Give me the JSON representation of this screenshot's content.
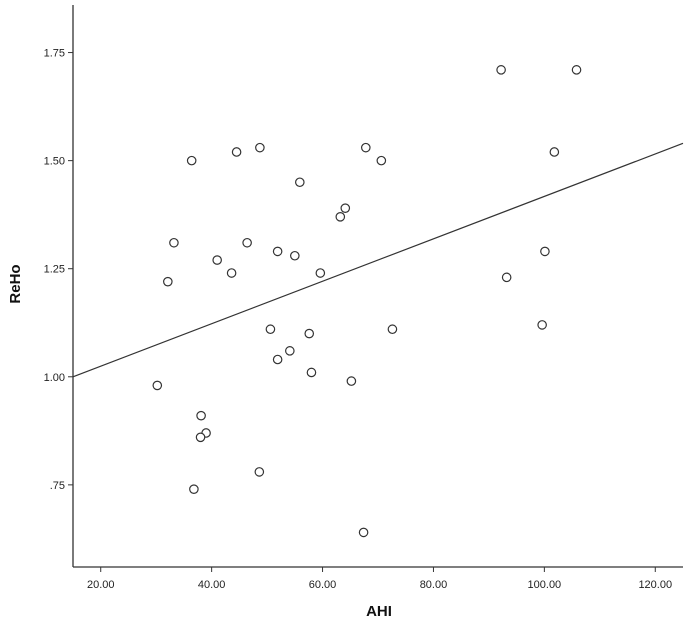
{
  "chart_data": {
    "type": "scatter",
    "title": "",
    "xlabel": "AHI",
    "ylabel": "ReHo",
    "xlim": [
      15,
      125
    ],
    "ylim": [
      0.56,
      1.86
    ],
    "x_ticks": [
      20,
      40,
      60,
      80,
      100,
      120
    ],
    "x_tick_labels": [
      "20.00",
      "40.00",
      "60.00",
      "80.00",
      "100.00",
      "120.00"
    ],
    "y_ticks": [
      0.75,
      1.0,
      1.25,
      1.5,
      1.75
    ],
    "y_tick_labels": [
      ".75",
      "1.00",
      "1.25",
      "1.50",
      "1.75"
    ],
    "grid": false,
    "marker": "open-circle",
    "colors": {
      "marker_stroke": "#333333",
      "line": "#333333",
      "axis": "#333333"
    },
    "points": [
      {
        "x": 92.2,
        "y": 1.71
      },
      {
        "x": 105.8,
        "y": 1.71
      },
      {
        "x": 67.8,
        "y": 1.53
      },
      {
        "x": 48.7,
        "y": 1.53
      },
      {
        "x": 44.5,
        "y": 1.52
      },
      {
        "x": 101.8,
        "y": 1.52
      },
      {
        "x": 70.6,
        "y": 1.5
      },
      {
        "x": 36.4,
        "y": 1.5
      },
      {
        "x": 55.9,
        "y": 1.45
      },
      {
        "x": 64.1,
        "y": 1.39
      },
      {
        "x": 63.2,
        "y": 1.37
      },
      {
        "x": 33.2,
        "y": 1.31
      },
      {
        "x": 46.4,
        "y": 1.31
      },
      {
        "x": 51.9,
        "y": 1.29
      },
      {
        "x": 100.1,
        "y": 1.29
      },
      {
        "x": 55.0,
        "y": 1.28
      },
      {
        "x": 41.0,
        "y": 1.27
      },
      {
        "x": 43.6,
        "y": 1.24
      },
      {
        "x": 59.6,
        "y": 1.24
      },
      {
        "x": 93.2,
        "y": 1.23
      },
      {
        "x": 32.1,
        "y": 1.22
      },
      {
        "x": 99.6,
        "y": 1.12
      },
      {
        "x": 72.6,
        "y": 1.11
      },
      {
        "x": 50.6,
        "y": 1.11
      },
      {
        "x": 57.6,
        "y": 1.1
      },
      {
        "x": 54.1,
        "y": 1.06
      },
      {
        "x": 51.9,
        "y": 1.04
      },
      {
        "x": 58.0,
        "y": 1.01
      },
      {
        "x": 65.2,
        "y": 0.99
      },
      {
        "x": 30.2,
        "y": 0.98
      },
      {
        "x": 38.1,
        "y": 0.91
      },
      {
        "x": 39.0,
        "y": 0.87
      },
      {
        "x": 38.0,
        "y": 0.86
      },
      {
        "x": 48.6,
        "y": 0.78
      },
      {
        "x": 36.8,
        "y": 0.74
      },
      {
        "x": 67.4,
        "y": 0.64
      }
    ],
    "fit_line": {
      "x": [
        15,
        125
      ],
      "y": [
        1.0,
        1.54
      ]
    }
  }
}
